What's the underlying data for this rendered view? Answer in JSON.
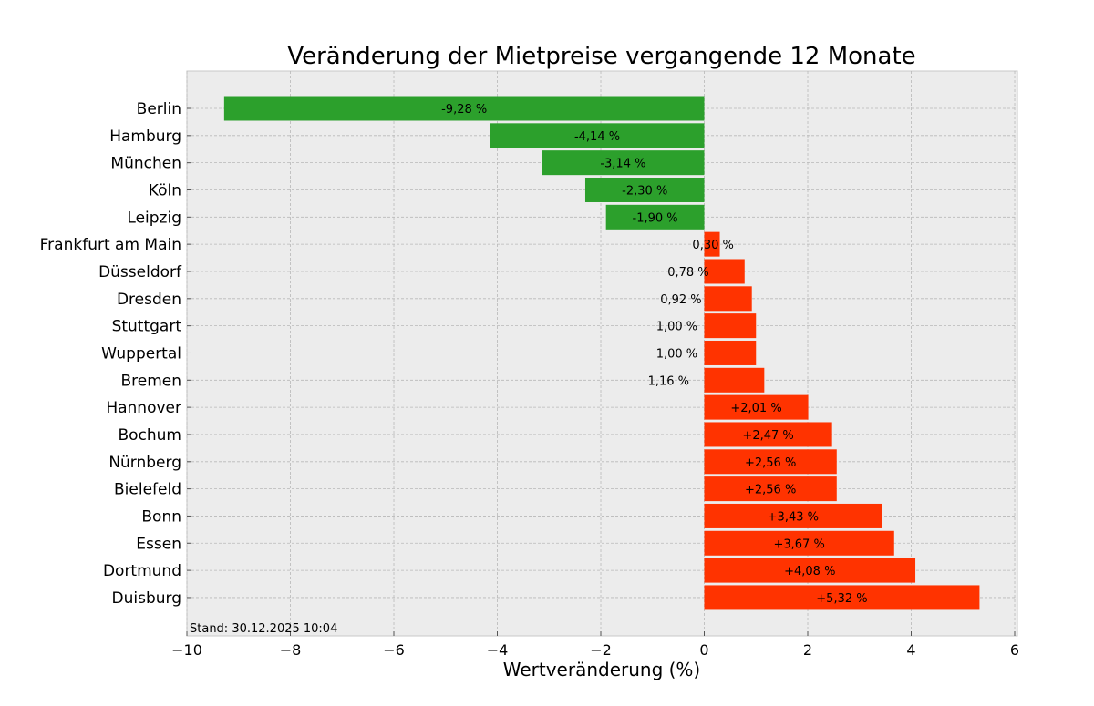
{
  "chart_data": {
    "type": "bar",
    "orientation": "horizontal",
    "title": "Veränderung der Mietpreise vergangende 12 Monate",
    "xlabel": "Wertveränderung (%)",
    "ylabel": "",
    "xlim": [
      -10,
      6.05
    ],
    "xticks": [
      -10,
      -8,
      -6,
      -4,
      -2,
      0,
      2,
      4,
      6
    ],
    "xtick_labels": [
      "−10",
      "−8",
      "−6",
      "−4",
      "−2",
      "0",
      "2",
      "4",
      "6"
    ],
    "grid": true,
    "annotation": "Stand: 30.12.2025 10:04",
    "colors": {
      "negative": "#2ca02c",
      "positive": "#ff3300",
      "background": "#ececec",
      "grid": "#b8b8b8"
    },
    "categories": [
      "Berlin",
      "Hamburg",
      "München",
      "Köln",
      "Leipzig",
      "Frankfurt am Main",
      "Düsseldorf",
      "Dresden",
      "Stuttgart",
      "Wuppertal",
      "Bremen",
      "Hannover",
      "Bochum",
      "Nürnberg",
      "Bielefeld",
      "Bonn",
      "Essen",
      "Dortmund",
      "Duisburg"
    ],
    "values": [
      -9.28,
      -4.14,
      -3.14,
      -2.3,
      -1.9,
      0.3,
      0.78,
      0.92,
      1.0,
      1.0,
      1.16,
      2.01,
      2.47,
      2.56,
      2.56,
      3.43,
      3.67,
      4.08,
      5.32
    ],
    "data_labels": [
      "-9,28 %",
      "-4,14 %",
      "-3,14 %",
      "-2,30 %",
      "-1,90 %",
      "0,30 %",
      "0,78 %",
      "0,92 %",
      "1,00 %",
      "1,00 %",
      "1,16 %",
      "+2,01 %",
      "+2,47 %",
      "+2,56 %",
      "+2,56 %",
      "+3,43 %",
      "+3,67 %",
      "+4,08 %",
      "+5,32 %"
    ]
  }
}
